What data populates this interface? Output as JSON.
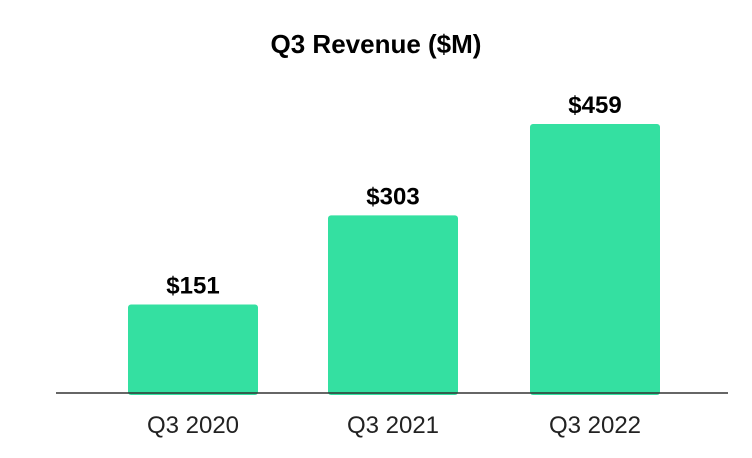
{
  "chart_data": {
    "type": "bar",
    "title": "Q3 Revenue ($M)",
    "categories": [
      "Q3 2020",
      "Q3 2021",
      "Q3 2022"
    ],
    "values": [
      151,
      303,
      459
    ],
    "data_labels": [
      "$151",
      "$303",
      "$459"
    ],
    "xlabel": "",
    "ylabel": "",
    "ylim": [
      0,
      459
    ],
    "grid": false,
    "legend": "none",
    "bar_color": "#34e0a1",
    "axis_color": "#333333"
  }
}
